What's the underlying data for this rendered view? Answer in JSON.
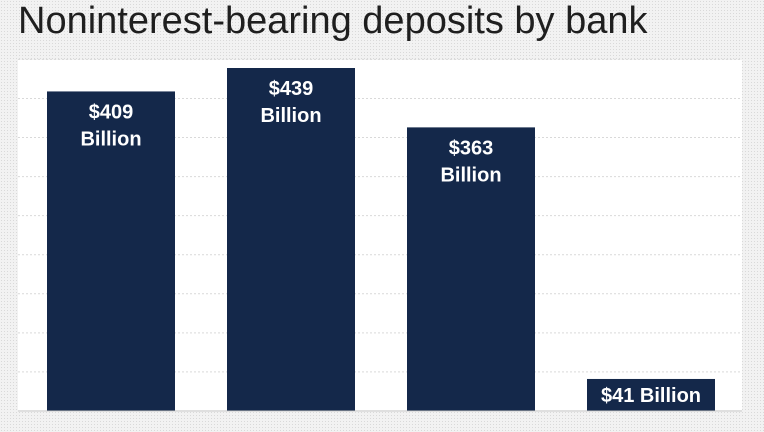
{
  "chart_data": {
    "type": "bar",
    "title": "Noninterest-bearing deposits by bank",
    "categories": [
      "",
      "",
      "",
      ""
    ],
    "values": [
      409,
      439,
      363,
      41
    ],
    "value_labels": [
      [
        "$409",
        "Billion"
      ],
      [
        "$439",
        "Billion"
      ],
      [
        "$363",
        "Billion"
      ],
      [
        "$41 Billion"
      ]
    ],
    "ylim": [
      0,
      450
    ],
    "grid": true,
    "bar_color": "#14284a",
    "grid_color": "#d9d9d9"
  }
}
